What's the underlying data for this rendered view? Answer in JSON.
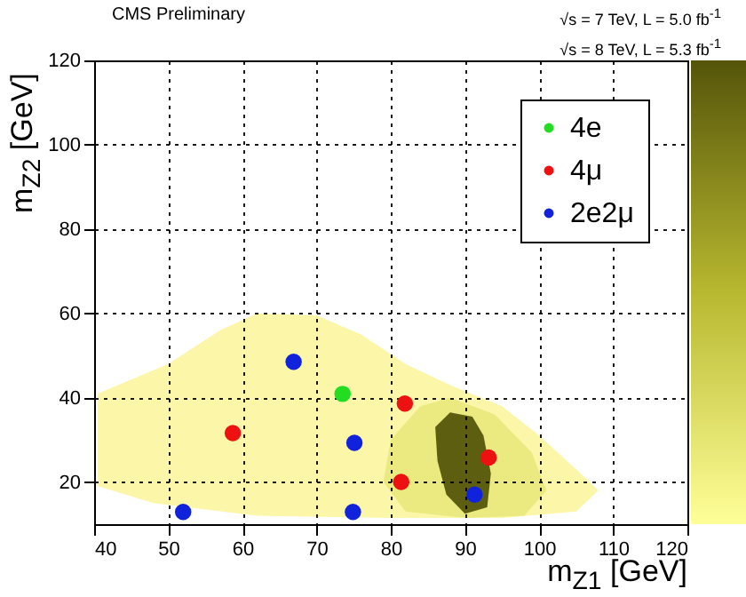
{
  "chart_data": {
    "type": "scatter",
    "title": "CMS Preliminary",
    "annotations": [
      "√s = 7 TeV, L = 5.0 fb$^{-1}$",
      "√s = 8 TeV, L = 5.3 fb$^{-1}$"
    ],
    "xlabel": "m$_{Z1}$ [GeV]",
    "ylabel": "m$_{Z2}$ [GeV]",
    "xlim": [
      40,
      120
    ],
    "ylim": [
      10,
      120
    ],
    "xticks": [
      40,
      50,
      60,
      70,
      80,
      90,
      100,
      110,
      120
    ],
    "yticks": [
      20,
      40,
      60,
      80,
      100,
      120
    ],
    "grid": true,
    "legend": "top right",
    "marker": "circle",
    "series": [
      {
        "name": "4e",
        "color": "#22dd22",
        "x": [
          73.5
        ],
        "values": [
          40.9
        ]
      },
      {
        "name": "4μ",
        "color": "#ee1111",
        "x": [
          58.7,
          81.9,
          93.2,
          81.4
        ],
        "values": [
          31.6,
          38.6,
          25.8,
          20.0
        ]
      },
      {
        "name": "2e2μ",
        "color": "#1122dd",
        "x": [
          52.0,
          66.9,
          74.9,
          75.1,
          91.3
        ],
        "values": [
          12.9,
          48.5,
          12.9,
          29.3,
          17.0
        ]
      }
    ]
  }
}
